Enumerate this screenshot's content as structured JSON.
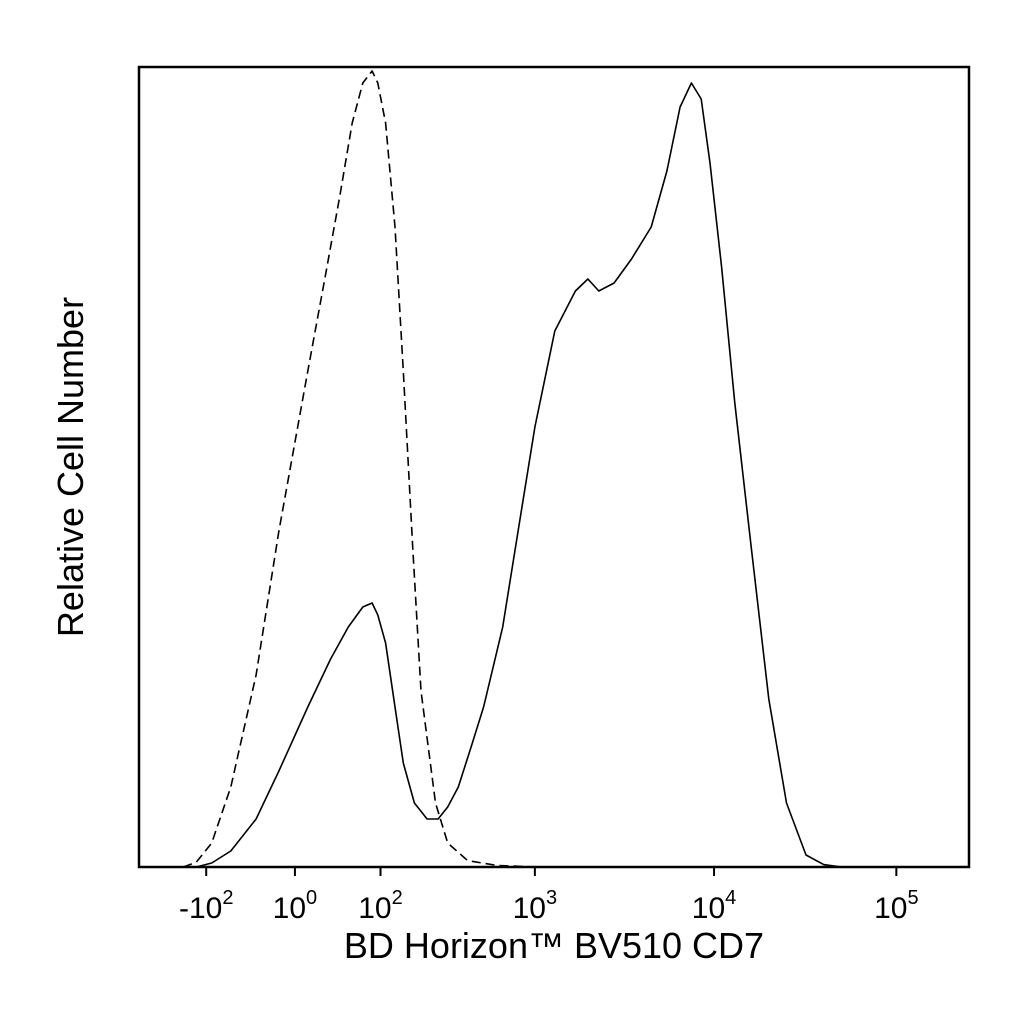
{
  "chart_data": {
    "type": "line",
    "title": "",
    "xlabel": "BD Horizon™ BV510 CD7",
    "ylabel": "Relative Cell Number",
    "x_scale": "biexponential",
    "x_ticks": [
      {
        "value": -100,
        "base": "-10",
        "exp": "2"
      },
      {
        "value": 1,
        "base": "10",
        "exp": "0"
      },
      {
        "value": 100,
        "base": "10",
        "exp": "2"
      },
      {
        "value": 1000,
        "base": "10",
        "exp": "3"
      },
      {
        "value": 10000,
        "base": "10",
        "exp": "4"
      },
      {
        "value": 100000,
        "base": "10",
        "exp": "5"
      }
    ],
    "xlim": [
      -300,
      250000
    ],
    "ylim": [
      0,
      100
    ],
    "grid": false,
    "legend": "none",
    "series": [
      {
        "style": "dashed",
        "x": [
          -150,
          -120,
          -90,
          -60,
          -30,
          -10,
          10,
          25,
          40,
          55,
          70,
          85,
          95,
          110,
          130,
          150,
          175,
          200,
          250,
          300,
          400,
          600,
          1000
        ],
        "y": [
          0,
          0.6,
          3,
          10,
          24,
          42,
          62,
          74,
          84,
          93,
          98,
          99.5,
          98,
          93,
          80,
          62,
          40,
          22,
          8,
          3,
          0.8,
          0.2,
          0
        ]
      },
      {
        "style": "solid",
        "x": [
          -120,
          -90,
          -60,
          -30,
          -10,
          10,
          30,
          50,
          70,
          85,
          95,
          110,
          130,
          150,
          180,
          220,
          260,
          300,
          350,
          420,
          500,
          650,
          800,
          1000,
          1300,
          1700,
          2000,
          2300,
          2800,
          3500,
          4500,
          5500,
          6500,
          7500,
          8500,
          9500,
          11000,
          13000,
          16000,
          20000,
          25000,
          32000,
          40000,
          50000
        ],
        "y": [
          0,
          0.5,
          2,
          6,
          12,
          20,
          26,
          30,
          32.5,
          33,
          31.5,
          28,
          20,
          13,
          8,
          6,
          6,
          7.5,
          10,
          15,
          20,
          30,
          42,
          55,
          67,
          72,
          73.5,
          72,
          73,
          76,
          80,
          87,
          95,
          98,
          96,
          88,
          75,
          58,
          40,
          21,
          8,
          1.5,
          0.3,
          0
        ]
      }
    ]
  }
}
